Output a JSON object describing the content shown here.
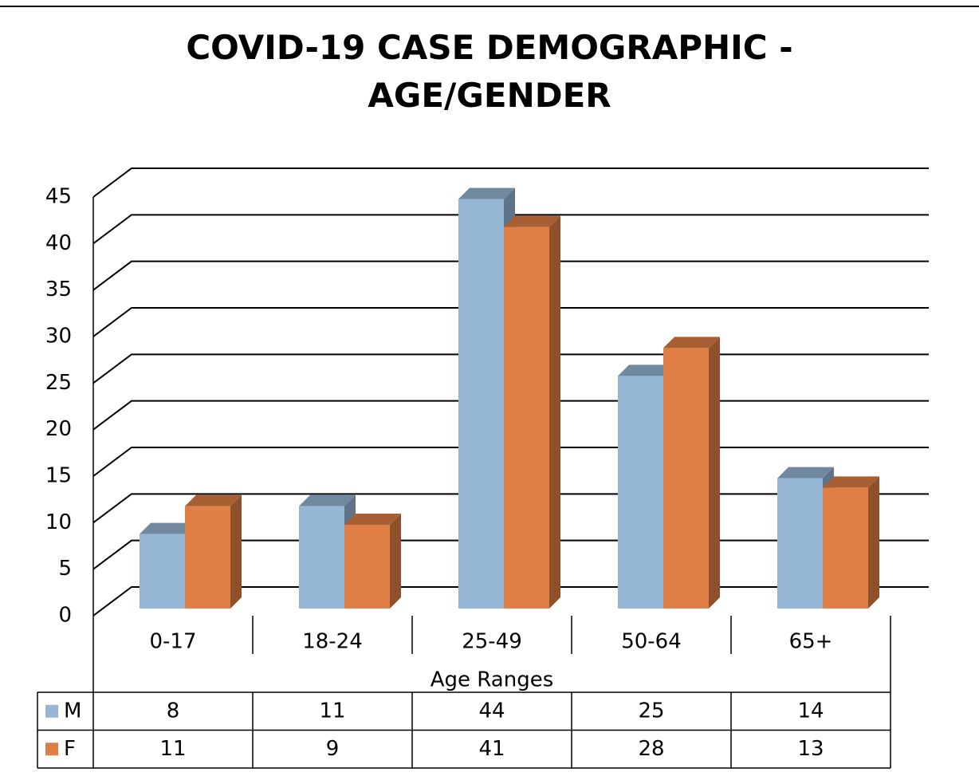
{
  "chart_data": {
    "type": "bar",
    "title": "COVID-19 CASE DEMOGRAPHIC - AGE/GENDER",
    "xlabel": "Age Ranges",
    "categories": [
      "0-17",
      "18-24",
      "25-49",
      "50-64",
      "65+"
    ],
    "series": [
      {
        "name": "M",
        "color": "#95b6d4",
        "values": [
          8,
          11,
          44,
          25,
          14
        ]
      },
      {
        "name": "F",
        "color": "#e07f45",
        "values": [
          11,
          9,
          41,
          28,
          13
        ]
      }
    ],
    "ylim": [
      0,
      45
    ],
    "yticks": [
      0,
      5,
      10,
      15,
      20,
      25,
      30,
      35,
      40,
      45
    ],
    "grid": true
  }
}
